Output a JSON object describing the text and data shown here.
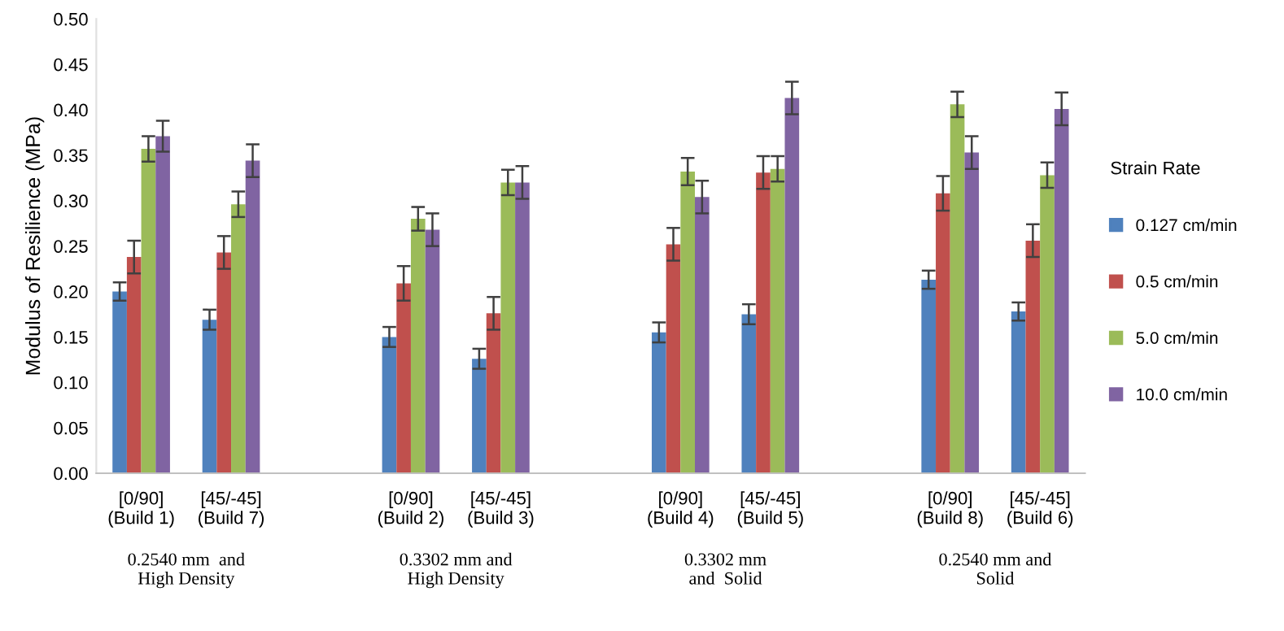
{
  "chart_data": {
    "type": "bar",
    "ylabel": "Modulus of Resilience (MPa)",
    "legend_title": "Strain Rate",
    "legend": "right",
    "grid": false,
    "categories": [
      "[0/90]\n(Build 1)",
      "[45/-45]\n(Build 7)",
      null,
      "[0/90]\n(Build 2)",
      "[45/-45]\n(Build 3)",
      null,
      "[0/90]\n(Build 4)",
      "[45/-45]\n(Build 5)",
      null,
      "[0/90]\n(Build 8)",
      "[45/-45]\n(Build 6)"
    ],
    "ylim": [
      0,
      0.5
    ],
    "yticks": [
      {
        "value": 0,
        "label": "0.00"
      },
      {
        "value": 0.05,
        "label": "0.05"
      },
      {
        "value": 0.1,
        "label": "0.10"
      },
      {
        "value": 0.15,
        "label": "0.15"
      },
      {
        "value": 0.2,
        "label": "0.20"
      },
      {
        "value": 0.25,
        "label": "0.25"
      },
      {
        "value": 0.3,
        "label": "0.30"
      },
      {
        "value": 0.35,
        "label": "0.35"
      },
      {
        "value": 0.4,
        "label": "0.40"
      },
      {
        "value": 0.45,
        "label": "0.45"
      },
      {
        "value": 0.5,
        "label": "0.50"
      }
    ],
    "series": [
      {
        "name": "0.127 cm/min",
        "color": "#4f81bd",
        "values": [
          0.2,
          0.169,
          null,
          0.15,
          0.126,
          null,
          0.155,
          0.175,
          null,
          0.213,
          0.178
        ],
        "errors": [
          0.01,
          0.011,
          null,
          0.011,
          0.011,
          null,
          0.011,
          0.011,
          null,
          0.01,
          0.01
        ]
      },
      {
        "name": "0.5 cm/min",
        "color": "#c0504d",
        "values": [
          0.238,
          0.243,
          null,
          0.209,
          0.176,
          null,
          0.252,
          0.331,
          null,
          0.308,
          0.256
        ],
        "errors": [
          0.018,
          0.018,
          null,
          0.019,
          0.018,
          null,
          0.018,
          0.018,
          null,
          0.019,
          0.018
        ]
      },
      {
        "name": "5.0 cm/min",
        "color": "#9bbb59",
        "values": [
          0.357,
          0.296,
          null,
          0.28,
          0.32,
          null,
          0.332,
          0.335,
          null,
          0.406,
          0.328
        ],
        "errors": [
          0.014,
          0.014,
          null,
          0.013,
          0.014,
          null,
          0.015,
          0.014,
          null,
          0.014,
          0.014
        ]
      },
      {
        "name": "10.0 cm/min",
        "color": "#8064a2",
        "values": [
          0.371,
          0.344,
          null,
          0.268,
          0.32,
          null,
          0.304,
          0.413,
          null,
          0.353,
          0.401
        ],
        "errors": [
          0.017,
          0.018,
          null,
          0.018,
          0.018,
          null,
          0.018,
          0.018,
          null,
          0.018,
          0.018
        ]
      }
    ],
    "annotations": [
      "0.2540 mm  and\nHigh Density",
      "0.3302 mm and\nHigh Density",
      "0.3302 mm\nand  Solid",
      "0.2540 mm and\nSolid"
    ]
  }
}
